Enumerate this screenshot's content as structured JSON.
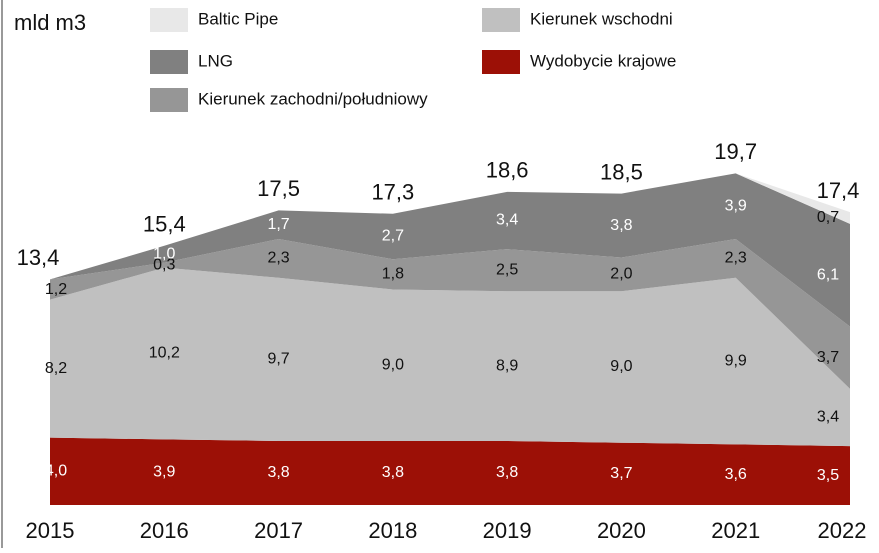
{
  "chart_data": {
    "type": "stacked_area",
    "ylabel": "mld m3",
    "categories": [
      "2015",
      "2016",
      "2017",
      "2018",
      "2019",
      "2020",
      "2021",
      "2022"
    ],
    "ylim": [
      0,
      30
    ],
    "series": [
      {
        "name": "Wydobycie krajowe",
        "color": "#9c1006",
        "text_color": "#ffffff",
        "values": [
          4.0,
          3.9,
          3.8,
          3.8,
          3.8,
          3.7,
          3.6,
          3.5
        ],
        "value_labels": [
          "4,0",
          "3,9",
          "3,8",
          "3,8",
          "3,8",
          "3,7",
          "3,6",
          "3,5"
        ]
      },
      {
        "name": "Kierunek wschodni",
        "color": "#c0c0c0",
        "text_color": "#111111",
        "values": [
          8.2,
          10.2,
          9.7,
          9.0,
          8.9,
          9.0,
          9.9,
          3.4
        ],
        "value_labels": [
          "8,2",
          "10,2",
          "9,7",
          "9,0",
          "8,9",
          "9,0",
          "9,9",
          "3,4"
        ]
      },
      {
        "name": "Kierunek zachodni/południowy",
        "color": "#969696",
        "text_color": "#111111",
        "values": [
          1.2,
          0.3,
          2.3,
          1.8,
          2.5,
          2.0,
          2.3,
          3.7
        ],
        "value_labels": [
          "1,2",
          "0,3",
          "2,3",
          "1,8",
          "2,5",
          "2,0",
          "2,3",
          "3,7"
        ]
      },
      {
        "name": "LNG",
        "color": "#808080",
        "text_color": "#ffffff",
        "values": [
          0,
          1.0,
          1.7,
          2.7,
          3.4,
          3.8,
          3.9,
          6.1
        ],
        "value_labels": [
          null,
          "1,0",
          "1,7",
          "2,7",
          "3,4",
          "3,8",
          "3,9",
          "6,1"
        ]
      },
      {
        "name": "Baltic Pipe",
        "color": "#e8e8e8",
        "text_color": "#111111",
        "values": [
          0,
          0,
          0,
          0,
          0,
          0,
          0,
          0.7
        ],
        "value_labels": [
          null,
          null,
          null,
          null,
          null,
          null,
          null,
          "0,7"
        ]
      }
    ],
    "total_labels": [
      "13,4",
      "15,4",
      "17,5",
      "17,3",
      "18,6",
      "18,5",
      "19,7",
      "17,4"
    ]
  }
}
